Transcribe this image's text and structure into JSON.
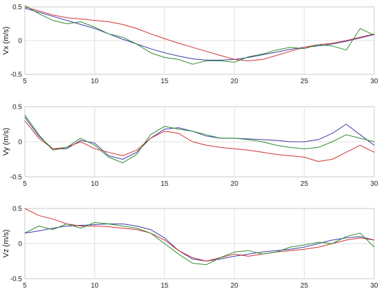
{
  "chart_data": [
    {
      "type": "line",
      "ylabel": "Vx (m/s)",
      "xlim": [
        5,
        30
      ],
      "ylim": [
        -0.5,
        0.5
      ],
      "xticks": [
        "5",
        "10",
        "15",
        "20",
        "25",
        "30"
      ],
      "yticks": [
        "-0.5",
        "0",
        "0.5"
      ],
      "grid": true,
      "series": [
        {
          "color": "#3a3aa8",
          "x": [
            5,
            6,
            7,
            8,
            9,
            10,
            11,
            12,
            13,
            14,
            15,
            16,
            17,
            18,
            19,
            20,
            21,
            22,
            23,
            24,
            25,
            26,
            27,
            28,
            29,
            30
          ],
          "y": [
            0.48,
            0.42,
            0.36,
            0.3,
            0.24,
            0.18,
            0.1,
            0.02,
            -0.05,
            -0.12,
            -0.18,
            -0.23,
            -0.27,
            -0.29,
            -0.29,
            -0.28,
            -0.25,
            -0.21,
            -0.17,
            -0.13,
            -0.1,
            -0.08,
            -0.05,
            -0.01,
            0.04,
            0.09
          ]
        },
        {
          "color": "#d03030",
          "x": [
            5,
            6,
            7,
            8,
            9,
            10,
            11,
            12,
            13,
            14,
            15,
            16,
            17,
            18,
            19,
            20,
            21,
            22,
            23,
            24,
            25,
            26,
            27,
            28,
            29,
            30
          ],
          "y": [
            0.5,
            0.44,
            0.38,
            0.34,
            0.32,
            0.3,
            0.28,
            0.24,
            0.18,
            0.1,
            0.03,
            -0.04,
            -0.1,
            -0.16,
            -0.22,
            -0.28,
            -0.3,
            -0.28,
            -0.22,
            -0.16,
            -0.1,
            -0.06,
            -0.04,
            0.0,
            0.05,
            0.1
          ]
        },
        {
          "color": "#2e8b2e",
          "x": [
            5,
            6,
            7,
            8,
            9,
            10,
            11,
            12,
            13,
            14,
            15,
            16,
            17,
            18,
            19,
            20,
            21,
            22,
            23,
            24,
            25,
            26,
            27,
            28,
            29,
            30
          ],
          "y": [
            0.52,
            0.4,
            0.3,
            0.25,
            0.28,
            0.2,
            0.1,
            0.05,
            -0.05,
            -0.18,
            -0.25,
            -0.28,
            -0.35,
            -0.3,
            -0.3,
            -0.32,
            -0.24,
            -0.2,
            -0.14,
            -0.1,
            -0.12,
            -0.06,
            -0.08,
            -0.14,
            0.18,
            0.08
          ]
        }
      ]
    },
    {
      "type": "line",
      "ylabel": "Vy (m/s)",
      "xlim": [
        5,
        30
      ],
      "ylim": [
        -0.5,
        0.5
      ],
      "xticks": [
        "5",
        "10",
        "15",
        "20",
        "25",
        "30"
      ],
      "yticks": [
        "-0.5",
        "0",
        "0.5"
      ],
      "grid": true,
      "series": [
        {
          "color": "#3a3aa8",
          "x": [
            5,
            6,
            7,
            8,
            9,
            10,
            11,
            12,
            13,
            14,
            15,
            16,
            17,
            18,
            19,
            20,
            21,
            22,
            23,
            24,
            25,
            26,
            27,
            28,
            29,
            30
          ],
          "y": [
            0.35,
            0.08,
            -0.1,
            -0.1,
            0.02,
            -0.02,
            -0.2,
            -0.25,
            -0.15,
            0.05,
            0.18,
            0.2,
            0.15,
            0.08,
            0.05,
            0.05,
            0.04,
            0.03,
            0.02,
            0.0,
            0.0,
            0.03,
            0.12,
            0.25,
            0.1,
            -0.05
          ]
        },
        {
          "color": "#d03030",
          "x": [
            5,
            6,
            7,
            8,
            9,
            10,
            11,
            12,
            13,
            14,
            15,
            16,
            17,
            18,
            19,
            20,
            21,
            22,
            23,
            24,
            25,
            26,
            27,
            28,
            29,
            30
          ],
          "y": [
            0.3,
            0.05,
            -0.1,
            -0.08,
            0.0,
            -0.1,
            -0.15,
            -0.2,
            -0.12,
            0.05,
            0.15,
            0.12,
            0.0,
            -0.05,
            -0.08,
            -0.1,
            -0.12,
            -0.15,
            -0.18,
            -0.2,
            -0.22,
            -0.28,
            -0.25,
            -0.15,
            -0.05,
            -0.15
          ]
        },
        {
          "color": "#2e8b2e",
          "x": [
            5,
            6,
            7,
            8,
            9,
            10,
            11,
            12,
            13,
            14,
            15,
            16,
            17,
            18,
            19,
            20,
            21,
            22,
            23,
            24,
            25,
            26,
            27,
            28,
            29,
            30
          ],
          "y": [
            0.38,
            0.1,
            -0.12,
            -0.08,
            0.05,
            -0.05,
            -0.22,
            -0.3,
            -0.18,
            0.1,
            0.22,
            0.18,
            0.15,
            0.1,
            0.05,
            0.05,
            0.03,
            0.0,
            -0.05,
            -0.08,
            -0.1,
            -0.08,
            0.0,
            0.1,
            0.05,
            0.0
          ]
        }
      ]
    },
    {
      "type": "line",
      "ylabel": "Vz (m/s)",
      "xlim": [
        5,
        30
      ],
      "ylim": [
        -0.5,
        0.5
      ],
      "xticks": [
        "5",
        "10",
        "15",
        "20",
        "25",
        "30"
      ],
      "yticks": [
        "-0.5",
        "0",
        "0.5"
      ],
      "grid": true,
      "series": [
        {
          "color": "#3a3aa8",
          "x": [
            5,
            6,
            7,
            8,
            9,
            10,
            11,
            12,
            13,
            14,
            15,
            16,
            17,
            18,
            19,
            20,
            21,
            22,
            23,
            24,
            25,
            26,
            27,
            28,
            29,
            30
          ],
          "y": [
            0.15,
            0.18,
            0.22,
            0.25,
            0.26,
            0.27,
            0.28,
            0.28,
            0.25,
            0.2,
            0.08,
            -0.1,
            -0.22,
            -0.25,
            -0.22,
            -0.18,
            -0.15,
            -0.12,
            -0.1,
            -0.08,
            -0.05,
            0.0,
            0.05,
            0.08,
            0.1,
            0.05
          ]
        },
        {
          "color": "#d03030",
          "x": [
            5,
            6,
            7,
            8,
            9,
            10,
            11,
            12,
            13,
            14,
            15,
            16,
            17,
            18,
            19,
            20,
            21,
            22,
            23,
            24,
            25,
            26,
            27,
            28,
            29,
            30
          ],
          "y": [
            0.5,
            0.4,
            0.35,
            0.28,
            0.25,
            0.25,
            0.24,
            0.22,
            0.2,
            0.15,
            0.05,
            -0.1,
            -0.2,
            -0.25,
            -0.2,
            -0.15,
            -0.18,
            -0.15,
            -0.12,
            -0.1,
            -0.08,
            -0.05,
            0.0,
            0.05,
            0.08,
            0.05
          ]
        },
        {
          "color": "#2e8b2e",
          "x": [
            5,
            6,
            7,
            8,
            9,
            10,
            11,
            12,
            13,
            14,
            15,
            16,
            17,
            18,
            19,
            20,
            21,
            22,
            23,
            24,
            25,
            26,
            27,
            28,
            29,
            30
          ],
          "y": [
            0.15,
            0.25,
            0.2,
            0.28,
            0.22,
            0.3,
            0.28,
            0.25,
            0.22,
            0.15,
            0.0,
            -0.15,
            -0.28,
            -0.3,
            -0.2,
            -0.12,
            -0.1,
            -0.15,
            -0.12,
            -0.05,
            -0.02,
            0.02,
            0.0,
            0.1,
            0.15,
            -0.05
          ]
        }
      ]
    }
  ]
}
